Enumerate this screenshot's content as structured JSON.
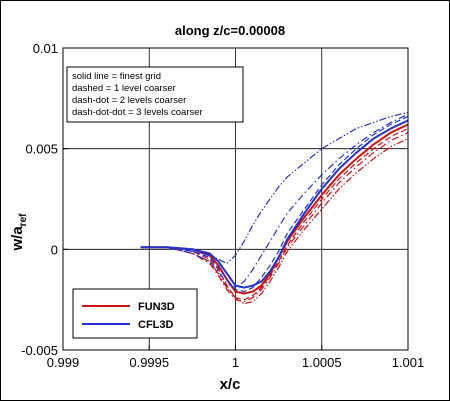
{
  "chart_data": {
    "type": "line",
    "title": "along z/c=0.00008",
    "xlabel": "x/c",
    "ylabel_main": "w/a",
    "ylabel_sub": "ref",
    "xlim": [
      0.999,
      1.001
    ],
    "ylim": [
      -0.005,
      0.01
    ],
    "xticks": [
      0.999,
      0.9995,
      1,
      1.0005,
      1.001
    ],
    "xtick_labels": [
      "0.999",
      "0.9995",
      "1",
      "1.0005",
      "1.001"
    ],
    "yticks": [
      -0.005,
      0,
      0.005,
      0.01
    ],
    "ytick_labels": [
      "-0.005",
      "0",
      "0.005",
      "0.01"
    ],
    "grid": true,
    "annotation_lines": [
      "solid line = finest grid",
      "dashed = 1 level coarser",
      "dash-dot = 2 levels coarser",
      "dash-dot-dot = 3 levels coarser"
    ],
    "legend_position": "bottom-left",
    "colors": {
      "FUN3D": "#cc1111",
      "CFL3D": "#2233cc"
    },
    "series": [
      {
        "name": "FUN3D",
        "code": "FUN3D",
        "level": "finest",
        "dash": "solid",
        "x": [
          0.99945,
          0.9996,
          0.99975,
          0.99985,
          0.9999,
          0.99995,
          1.0,
          1.00005,
          1.0001,
          1.00015,
          1.0002,
          1.00025,
          1.0003,
          1.0004,
          1.0005,
          1.0006,
          1.0007,
          1.0008,
          1.0009,
          1.001
        ],
        "y": [
          0.0001,
          0.0001,
          0.0,
          -0.0003,
          -0.0008,
          -0.0015,
          -0.0021,
          -0.0022,
          -0.0021,
          -0.0018,
          -0.0012,
          -0.0004,
          0.0004,
          0.0016,
          0.0027,
          0.0037,
          0.0045,
          0.0052,
          0.0058,
          0.0062
        ]
      },
      {
        "name": "FUN3D",
        "code": "FUN3D",
        "level": "1 coarser",
        "dash": "dashed",
        "x": [
          0.99945,
          0.9996,
          0.99975,
          0.99985,
          0.9999,
          0.99995,
          1.0,
          1.00005,
          1.0001,
          1.00015,
          1.0002,
          1.00025,
          1.0003,
          1.0004,
          1.0005,
          1.0006,
          1.0007,
          1.0008,
          1.0009,
          1.001
        ],
        "y": [
          0.0001,
          0.0001,
          -0.0001,
          -0.0005,
          -0.001,
          -0.0018,
          -0.0024,
          -0.0025,
          -0.0023,
          -0.0019,
          -0.0013,
          -0.0006,
          0.0002,
          0.0014,
          0.0025,
          0.0035,
          0.0043,
          0.005,
          0.0056,
          0.006
        ]
      },
      {
        "name": "FUN3D",
        "code": "FUN3D",
        "level": "2 coarser",
        "dash": "dash-dot",
        "x": [
          0.99945,
          0.9996,
          0.99975,
          0.99985,
          0.9999,
          0.99995,
          1.0,
          1.00005,
          1.0001,
          1.00015,
          1.0002,
          1.00025,
          1.0003,
          1.0004,
          1.0005,
          1.0006,
          1.0007,
          1.0008,
          1.0009,
          1.001
        ],
        "y": [
          0.0001,
          0.0001,
          -0.0002,
          -0.0007,
          -0.0013,
          -0.002,
          -0.0025,
          -0.0026,
          -0.0024,
          -0.002,
          -0.0014,
          -0.0007,
          0.0001,
          0.0012,
          0.0023,
          0.0033,
          0.0041,
          0.0048,
          0.0054,
          0.0058
        ]
      },
      {
        "name": "FUN3D",
        "code": "FUN3D",
        "level": "3 coarser",
        "dash": "dash-dot-dot",
        "x": [
          0.99945,
          0.9996,
          0.99975,
          0.99985,
          0.9999,
          0.99995,
          1.0,
          1.00005,
          1.0001,
          1.00015,
          1.0002,
          1.00025,
          1.0003,
          1.0004,
          1.0005,
          1.0006,
          1.0007,
          1.0008,
          1.0009,
          1.001
        ],
        "y": [
          0.0001,
          0.0001,
          -0.0002,
          -0.0006,
          -0.0012,
          -0.0019,
          -0.0024,
          -0.0027,
          -0.0026,
          -0.0022,
          -0.0016,
          -0.0009,
          -0.0001,
          0.001,
          0.002,
          0.003,
          0.0038,
          0.0045,
          0.0051,
          0.0055
        ]
      },
      {
        "name": "CFL3D",
        "code": "CFL3D",
        "level": "finest",
        "dash": "solid",
        "x": [
          0.99945,
          0.9996,
          0.99975,
          0.99985,
          0.9999,
          0.99995,
          1.0,
          1.00005,
          1.0001,
          1.00015,
          1.0002,
          1.00025,
          1.0003,
          1.0004,
          1.0005,
          1.0006,
          1.0007,
          1.0008,
          1.0009,
          1.001
        ],
        "y": [
          0.0001,
          0.0001,
          0.0,
          -0.0002,
          -0.0006,
          -0.0012,
          -0.0018,
          -0.0019,
          -0.0018,
          -0.0016,
          -0.0011,
          -0.0004,
          0.0005,
          0.0018,
          0.003,
          0.004,
          0.0048,
          0.0055,
          0.006,
          0.0064
        ]
      },
      {
        "name": "CFL3D",
        "code": "CFL3D",
        "level": "1 coarser",
        "dash": "dashed",
        "x": [
          0.99945,
          0.9996,
          0.99975,
          0.99985,
          0.9999,
          0.99995,
          1.0,
          1.00005,
          1.0001,
          1.00015,
          1.0002,
          1.00025,
          1.0003,
          1.0004,
          1.0005,
          1.0006,
          1.0007,
          1.0008,
          1.0009,
          1.001
        ],
        "y": [
          0.0001,
          0.0001,
          -0.0001,
          -0.0004,
          -0.0009,
          -0.0015,
          -0.002,
          -0.0021,
          -0.0019,
          -0.0014,
          -0.0008,
          -0.0001,
          0.0008,
          0.002,
          0.0032,
          0.0042,
          0.005,
          0.0057,
          0.0062,
          0.0066
        ]
      },
      {
        "name": "CFL3D",
        "code": "CFL3D",
        "level": "2 coarser",
        "dash": "dash-dot",
        "x": [
          0.99945,
          0.9996,
          0.99975,
          0.99985,
          0.9999,
          0.99995,
          1.0,
          1.00005,
          1.0001,
          1.00015,
          1.0002,
          1.00025,
          1.0003,
          1.0004,
          1.0005,
          1.0006,
          1.0007,
          1.0008,
          1.0009,
          1.001
        ],
        "y": [
          0.0001,
          0.0001,
          -0.0002,
          -0.0006,
          -0.0011,
          -0.0017,
          -0.0019,
          -0.0016,
          -0.001,
          -0.0003,
          0.0004,
          0.0011,
          0.0018,
          0.0028,
          0.0037,
          0.0045,
          0.0052,
          0.0058,
          0.0063,
          0.0067
        ]
      },
      {
        "name": "CFL3D",
        "code": "CFL3D",
        "level": "3 coarser",
        "dash": "dash-dot-dot",
        "x": [
          0.99945,
          0.9996,
          0.99975,
          0.99985,
          0.9999,
          0.99995,
          1.0,
          1.00005,
          1.0001,
          1.00015,
          1.0002,
          1.00025,
          1.0003,
          1.0004,
          1.0005,
          1.0006,
          1.0007,
          1.0008,
          1.0009,
          1.001
        ],
        "y": [
          0.0001,
          0.0001,
          -0.0001,
          -0.0003,
          -0.0005,
          -0.0007,
          -0.0003,
          0.0004,
          0.0012,
          0.0019,
          0.0025,
          0.0031,
          0.0036,
          0.0043,
          0.005,
          0.0055,
          0.006,
          0.0063,
          0.0066,
          0.0068
        ]
      }
    ]
  }
}
